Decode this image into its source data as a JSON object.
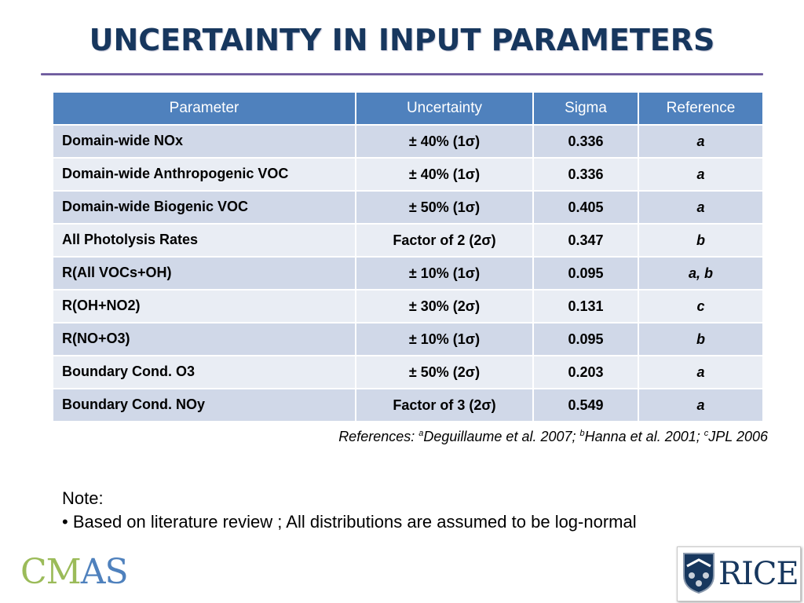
{
  "title": "UNCERTAINTY IN INPUT PARAMETERS",
  "table": {
    "headers": [
      "Parameter",
      "Uncertainty",
      "Sigma",
      "Reference"
    ],
    "rows": [
      [
        "Domain-wide NOx",
        "± 40%  (1σ)",
        "0.336",
        "a"
      ],
      [
        "Domain-wide Anthropogenic VOC",
        "± 40%  (1σ)",
        "0.336",
        "a"
      ],
      [
        "Domain-wide Biogenic VOC",
        "± 50%  (1σ)",
        "0.405",
        "a"
      ],
      [
        "All Photolysis Rates",
        "Factor of 2 (2σ)",
        "0.347",
        "b"
      ],
      [
        "R(All VOCs+OH)",
        "± 10%  (1σ)",
        "0.095",
        "a, b"
      ],
      [
        "R(OH+NO2)",
        "± 30%  (2σ)",
        "0.131",
        "c"
      ],
      [
        "R(NO+O3)",
        "± 10%  (1σ)",
        "0.095",
        "b"
      ],
      [
        "Boundary Cond. O3",
        "± 50%  (2σ)",
        "0.203",
        "a"
      ],
      [
        "Boundary Cond. NOy",
        "Factor of 3 (2σ)",
        "0.549",
        "a"
      ]
    ]
  },
  "references": {
    "prefix": "References: ",
    "items": [
      {
        "mark": "a",
        "text": "Deguillaume et al. 2007; "
      },
      {
        "mark": "b",
        "text": "Hanna et al. 2001; "
      },
      {
        "mark": "c",
        "text": "JPL 2006"
      }
    ]
  },
  "note": {
    "label": "Note:",
    "bullet": "• Based on literature review ; All distributions are assumed to be log-normal"
  },
  "logos": {
    "cmas": {
      "part1": "CM",
      "part2": "AS"
    },
    "rice": "RICE"
  },
  "colors": {
    "title": "#17375e",
    "header": "#4f81bd",
    "row_odd": "#d0d8e8",
    "row_even": "#e9edf4",
    "rule": "#6b5a9e"
  }
}
